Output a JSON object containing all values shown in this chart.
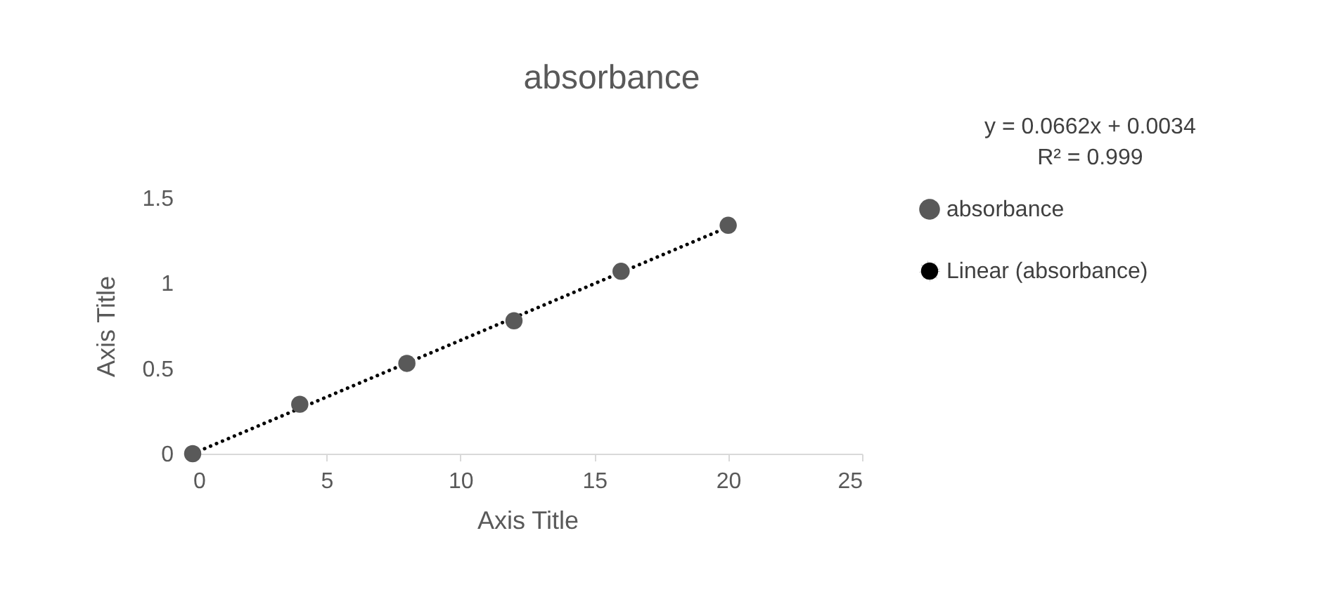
{
  "chart_data": {
    "type": "scatter",
    "title": "absorbance",
    "xlabel": "Axis Title",
    "ylabel": "Axis Title",
    "xlim": [
      0,
      25
    ],
    "xticks": [
      0,
      5,
      10,
      15,
      20,
      25
    ],
    "ylim": [
      0,
      1.5
    ],
    "yticks": [
      0,
      0.5,
      1,
      1.5
    ],
    "grid": false,
    "legend": "right",
    "annotations": [
      "y = 0.0662x + 0.0034",
      "R² = 0.999"
    ],
    "series": [
      {
        "name": "absorbance",
        "type": "scatter",
        "marker": "circle",
        "color": "#595959",
        "x": [
          0,
          4,
          8,
          12,
          16,
          20
        ],
        "values": [
          0,
          0.29,
          0.53,
          0.78,
          1.07,
          1.34
        ]
      },
      {
        "name": "Linear (absorbance)",
        "type": "line",
        "line_style": "dotted",
        "color": "#000000",
        "x": [
          0,
          20
        ],
        "values": [
          0,
          1.33
        ]
      }
    ]
  }
}
